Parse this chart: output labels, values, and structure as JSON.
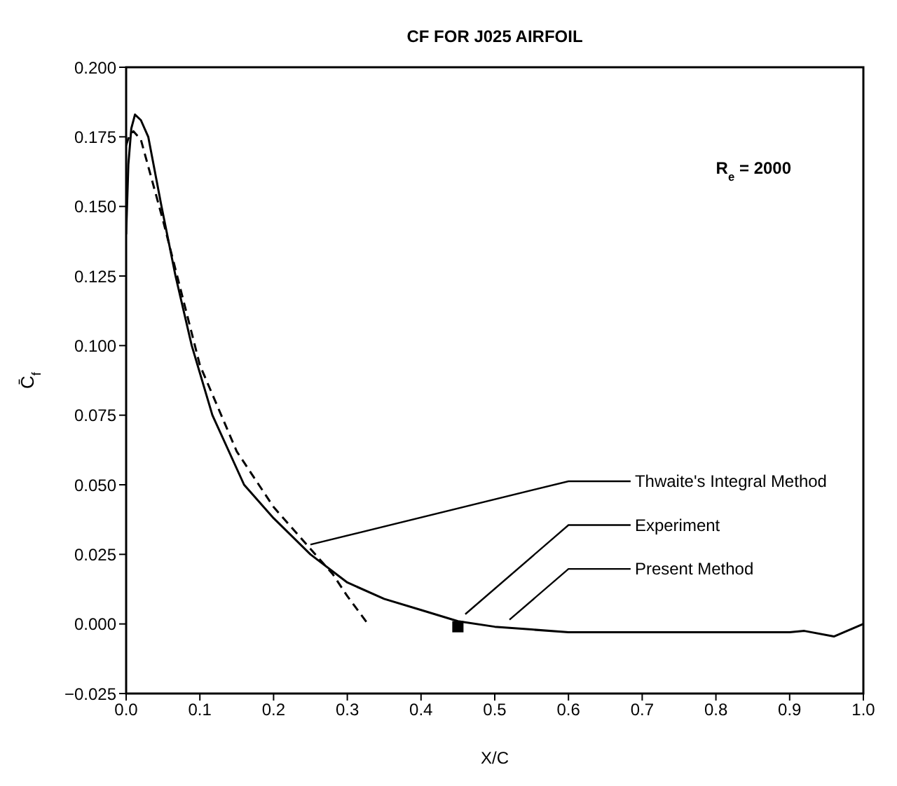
{
  "chart_data": {
    "type": "line",
    "title": "CF FOR J025 AIRFOIL",
    "xlabel": "X/C",
    "ylabel": "C̄$_{f}$",
    "xlim": [
      0,
      1
    ],
    "ylim": [
      -0.025,
      0.2
    ],
    "xticks": [
      {
        "value": 0,
        "label": "0.0"
      },
      {
        "value": 0.1,
        "label": "0.1"
      },
      {
        "value": 0.2,
        "label": "0.2"
      },
      {
        "value": 0.3,
        "label": "0.3"
      },
      {
        "value": 0.4,
        "label": "0.4"
      },
      {
        "value": 0.5,
        "label": "0.5"
      },
      {
        "value": 0.6,
        "label": "0.6"
      },
      {
        "value": 0.7,
        "label": "0.7"
      },
      {
        "value": 0.8,
        "label": "0.8"
      },
      {
        "value": 0.9,
        "label": "0.9"
      },
      {
        "value": 1,
        "label": "1.0"
      }
    ],
    "yticks": [
      {
        "value": -0.025,
        "label": "−0.025"
      },
      {
        "value": 0,
        "label": "0.000"
      },
      {
        "value": 0.025,
        "label": "0.025"
      },
      {
        "value": 0.05,
        "label": "0.050"
      },
      {
        "value": 0.075,
        "label": "0.075"
      },
      {
        "value": 0.1,
        "label": "0.100"
      },
      {
        "value": 0.125,
        "label": "0.125"
      },
      {
        "value": 0.15,
        "label": "0.150"
      },
      {
        "value": 0.175,
        "label": "0.175"
      },
      {
        "value": 0.2,
        "label": "0.200"
      }
    ],
    "grid": false,
    "series": [
      {
        "color": "#000000",
        "line_style": "solid",
        "marker": "none",
        "x": [
          0,
          0.003,
          0.007,
          0.012,
          0.02,
          0.03,
          0.048,
          0.067,
          0.089,
          0.117,
          0.16,
          0.2,
          0.25,
          0.3,
          0.35,
          0.4,
          0.45,
          0.5,
          0.55,
          0.6,
          0.7,
          0.8,
          0.9,
          0.92,
          0.96,
          1.0
        ],
        "values": [
          0.14,
          0.165,
          0.178,
          0.183,
          0.181,
          0.175,
          0.15,
          0.125,
          0.1,
          0.075,
          0.05,
          0.038,
          0.025,
          0.0149,
          0.009,
          0.005,
          0.001,
          -0.001,
          -0.002,
          -0.003,
          -0.003,
          -0.003,
          -0.003,
          -0.0025,
          -0.0045,
          0.0
        ]
      },
      {
        "color": "#000000",
        "line_style": "dashed",
        "marker": "none",
        "x": [
          0,
          0.005,
          0.01,
          0.02,
          0.05,
          0.1,
          0.15,
          0.2,
          0.25,
          0.28,
          0.3,
          0.328
        ],
        "values": [
          0.172,
          0.176,
          0.177,
          0.174,
          0.145,
          0.093,
          0.062,
          0.042,
          0.027,
          0.018,
          0.01,
          0.0
        ]
      },
      {
        "type": "scatter",
        "color": "#000000",
        "marker": "square",
        "x": [
          0.45
        ],
        "values": [
          -0.001
        ]
      }
    ],
    "annotations": [
      {
        "text": "Thwaite's Integral Method",
        "x": 0.25,
        "y": 0.027
      },
      {
        "text": "Experiment",
        "x": 0.46,
        "y": 0.002
      },
      {
        "text": "Present Method",
        "x": 0.52,
        "y": 0.0
      },
      "R$_{e}$ = 2000"
    ]
  }
}
